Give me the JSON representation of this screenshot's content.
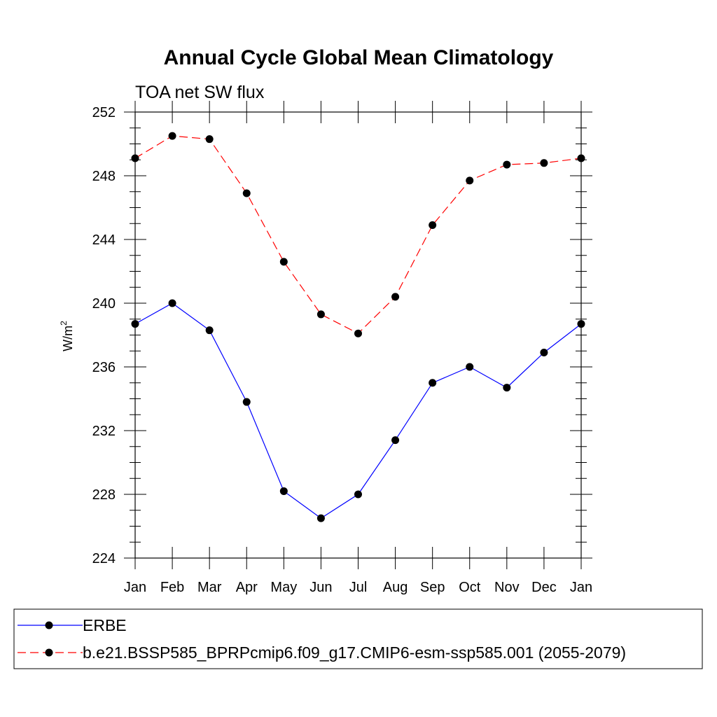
{
  "chart_data": {
    "type": "line",
    "title": "Annual Cycle Global Mean Climatology",
    "subtitle": "TOA net SW flux",
    "ylabel": "W/m",
    "ylabel_superscript": "2",
    "xlabel": "",
    "ylim": [
      224,
      252
    ],
    "yticks": [
      224,
      228,
      232,
      236,
      240,
      244,
      248,
      252
    ],
    "categories": [
      "Jan",
      "Feb",
      "Mar",
      "Apr",
      "May",
      "Jun",
      "Jul",
      "Aug",
      "Sep",
      "Oct",
      "Nov",
      "Dec",
      "Jan"
    ],
    "series": [
      {
        "name": "ERBE",
        "color": "#0000ff",
        "dash": "solid",
        "values": [
          238.7,
          240.0,
          238.3,
          233.8,
          228.2,
          226.5,
          228.0,
          231.4,
          235.0,
          236.0,
          234.7,
          236.9,
          238.7
        ]
      },
      {
        "name": "b.e21.BSSP585_BPRPcmip6.f09_g17.CMIP6-esm-ssp585.001 (2055-2079)",
        "color": "#ff0000",
        "dash": "dashed",
        "values": [
          249.1,
          250.5,
          250.3,
          246.9,
          242.6,
          239.3,
          238.1,
          240.4,
          244.9,
          247.7,
          248.7,
          248.8,
          249.1
        ]
      }
    ],
    "legend_position": "bottom",
    "grid": false
  }
}
